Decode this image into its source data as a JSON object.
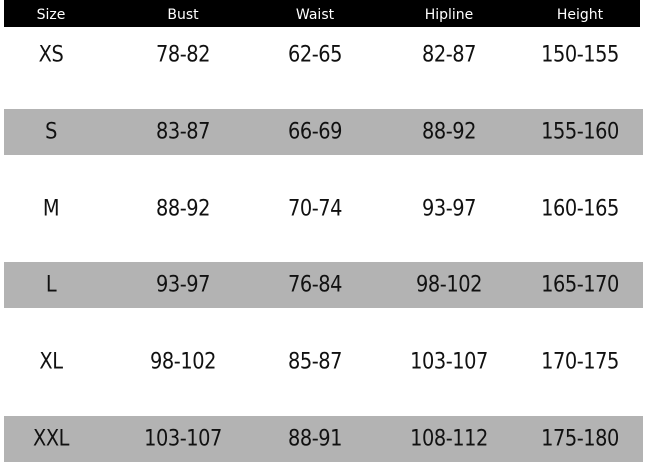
{
  "table": {
    "header": [
      "Size",
      "Bust",
      "Waist",
      "Hipline",
      "Height"
    ],
    "rows": [
      [
        "XS",
        "78-82",
        "62-65",
        "82-87",
        "150-155"
      ],
      [
        "S",
        "83-87",
        "66-69",
        "88-92",
        "155-160"
      ],
      [
        "M",
        "88-92",
        "70-74",
        "93-97",
        "160-165"
      ],
      [
        "L",
        "93-97",
        "76-84",
        "98-102",
        "165-170"
      ],
      [
        "XL",
        "98-102",
        "85-87",
        "103-107",
        "170-175"
      ],
      [
        "XXL",
        "103-107",
        "88-91",
        "108-112",
        "175-180"
      ]
    ]
  }
}
